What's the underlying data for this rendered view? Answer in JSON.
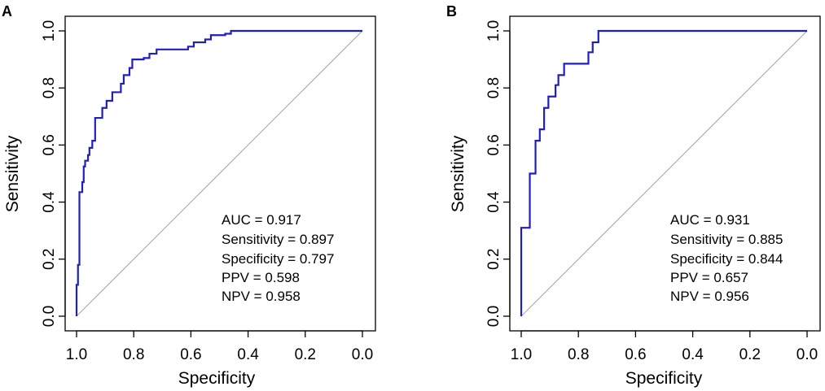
{
  "chart_data": [
    {
      "panel": "A",
      "type": "line",
      "title": "",
      "xlabel": "Specificity",
      "ylabel": "Sensitivity",
      "xlim": [
        1.0,
        0.0
      ],
      "ylim": [
        0.0,
        1.0
      ],
      "x_ticks": [
        "1.0",
        "0.8",
        "0.6",
        "0.4",
        "0.2",
        "0.0"
      ],
      "y_ticks": [
        "0.0",
        "0.2",
        "0.4",
        "0.6",
        "0.8",
        "1.0"
      ],
      "grid": false,
      "series": [
        {
          "name": "ROC",
          "color": "#1f1fbf",
          "points": [
            [
              1.0,
              0.0
            ],
            [
              1.0,
              0.11
            ],
            [
              0.995,
              0.11
            ],
            [
              0.995,
              0.18
            ],
            [
              0.99,
              0.18
            ],
            [
              0.99,
              0.435
            ],
            [
              0.98,
              0.435
            ],
            [
              0.98,
              0.47
            ],
            [
              0.975,
              0.47
            ],
            [
              0.975,
              0.525
            ],
            [
              0.97,
              0.525
            ],
            [
              0.97,
              0.545
            ],
            [
              0.96,
              0.545
            ],
            [
              0.96,
              0.565
            ],
            [
              0.955,
              0.565
            ],
            [
              0.955,
              0.59
            ],
            [
              0.945,
              0.59
            ],
            [
              0.945,
              0.615
            ],
            [
              0.935,
              0.615
            ],
            [
              0.935,
              0.695
            ],
            [
              0.91,
              0.695
            ],
            [
              0.91,
              0.73
            ],
            [
              0.895,
              0.73
            ],
            [
              0.895,
              0.755
            ],
            [
              0.875,
              0.755
            ],
            [
              0.875,
              0.785
            ],
            [
              0.845,
              0.785
            ],
            [
              0.845,
              0.815
            ],
            [
              0.835,
              0.815
            ],
            [
              0.835,
              0.845
            ],
            [
              0.815,
              0.845
            ],
            [
              0.815,
              0.87
            ],
            [
              0.805,
              0.87
            ],
            [
              0.805,
              0.9
            ],
            [
              0.765,
              0.9
            ],
            [
              0.765,
              0.905
            ],
            [
              0.745,
              0.905
            ],
            [
              0.745,
              0.92
            ],
            [
              0.72,
              0.92
            ],
            [
              0.72,
              0.935
            ],
            [
              0.61,
              0.935
            ],
            [
              0.61,
              0.945
            ],
            [
              0.59,
              0.945
            ],
            [
              0.59,
              0.96
            ],
            [
              0.55,
              0.96
            ],
            [
              0.55,
              0.97
            ],
            [
              0.53,
              0.97
            ],
            [
              0.53,
              0.985
            ],
            [
              0.48,
              0.985
            ],
            [
              0.48,
              0.99
            ],
            [
              0.46,
              0.99
            ],
            [
              0.46,
              1.0
            ],
            [
              0.0,
              1.0
            ]
          ]
        }
      ],
      "reference_line": {
        "name": "chance",
        "color": "#a6a6a6",
        "from": [
          1.0,
          0.0
        ],
        "to": [
          0.0,
          1.0
        ]
      },
      "annotations": [
        "AUC = 0.917",
        "Sensitivity = 0.897",
        "Specificity = 0.797",
        "PPV = 0.598",
        "NPV = 0.958"
      ]
    },
    {
      "panel": "B",
      "type": "line",
      "title": "",
      "xlabel": "Specificity",
      "ylabel": "Sensitivity",
      "xlim": [
        1.0,
        0.0
      ],
      "ylim": [
        0.0,
        1.0
      ],
      "x_ticks": [
        "1.0",
        "0.8",
        "0.6",
        "0.4",
        "0.2",
        "0.0"
      ],
      "y_ticks": [
        "0.0",
        "0.2",
        "0.4",
        "0.6",
        "0.8",
        "1.0"
      ],
      "grid": false,
      "series": [
        {
          "name": "ROC",
          "color": "#1f1fbf",
          "points": [
            [
              1.0,
              0.0
            ],
            [
              1.0,
              0.31
            ],
            [
              0.97,
              0.31
            ],
            [
              0.97,
              0.5
            ],
            [
              0.95,
              0.5
            ],
            [
              0.95,
              0.615
            ],
            [
              0.935,
              0.615
            ],
            [
              0.935,
              0.655
            ],
            [
              0.92,
              0.655
            ],
            [
              0.92,
              0.73
            ],
            [
              0.905,
              0.73
            ],
            [
              0.905,
              0.77
            ],
            [
              0.88,
              0.77
            ],
            [
              0.88,
              0.81
            ],
            [
              0.87,
              0.81
            ],
            [
              0.87,
              0.845
            ],
            [
              0.85,
              0.845
            ],
            [
              0.85,
              0.885
            ],
            [
              0.765,
              0.885
            ],
            [
              0.765,
              0.925
            ],
            [
              0.75,
              0.925
            ],
            [
              0.75,
              0.96
            ],
            [
              0.73,
              0.96
            ],
            [
              0.73,
              1.0
            ],
            [
              0.0,
              1.0
            ]
          ]
        }
      ],
      "reference_line": {
        "name": "chance",
        "color": "#a6a6a6",
        "from": [
          1.0,
          0.0
        ],
        "to": [
          0.0,
          1.0
        ]
      },
      "annotations": [
        "AUC = 0.931",
        "Sensitivity = 0.885",
        "Specificity = 0.844",
        "PPV = 0.657",
        "NPV = 0.956"
      ]
    }
  ]
}
